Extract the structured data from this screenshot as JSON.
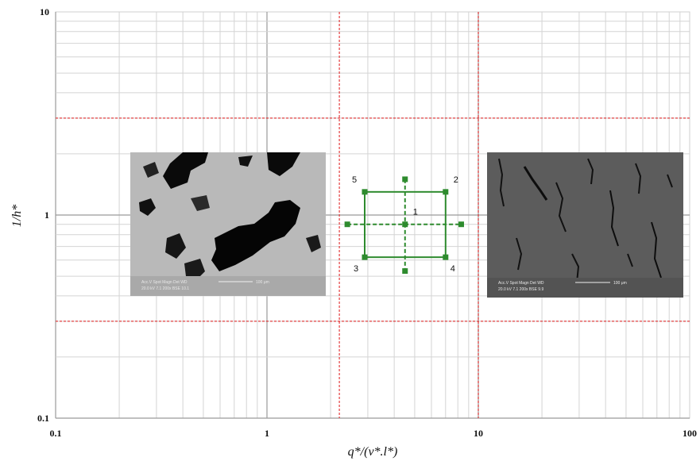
{
  "chart_data": {
    "type": "scatter",
    "x_scale": "log",
    "y_scale": "log",
    "xlim": [
      0.1,
      100
    ],
    "ylim": [
      0.1,
      10
    ],
    "x_ticks": [
      "0.1",
      "1",
      "10",
      "100"
    ],
    "y_ticks": [
      "0.1",
      "1",
      "10"
    ],
    "xlabel": "q*/(v*.l*)",
    "ylabel": "1/h*",
    "grid": true,
    "reference_lines": {
      "vertical": [
        2.2,
        10
      ],
      "horizontal": [
        3.0,
        0.3
      ],
      "color": "#e0191a"
    },
    "design_points": [
      {
        "label": "1",
        "x": 4.5,
        "y": 0.9
      },
      {
        "label": "2",
        "x": 7.0,
        "y": 1.3
      },
      {
        "label": "3",
        "x": 2.9,
        "y": 0.62
      },
      {
        "label": "4",
        "x": 7.0,
        "y": 0.62
      },
      {
        "label": "5",
        "x": 2.9,
        "y": 1.3
      }
    ],
    "axial_points": [
      {
        "x": 4.5,
        "y": 1.5
      },
      {
        "x": 4.5,
        "y": 0.53
      },
      {
        "x": 2.4,
        "y": 0.9
      },
      {
        "x": 8.3,
        "y": 0.9
      }
    ],
    "point_color": "#2e8b2e",
    "micrograph_left": {
      "line1": "Acc.V  Spot Magn   Det  WD",
      "line2": "20.0 kV 7.1  200x   BSE 10.1",
      "scale": "100 μm"
    },
    "micrograph_right": {
      "line1": "Acc.V  Spot Magn   Det  WD",
      "line2": "20.0 kV 7.1  200x   BSE 9.9",
      "scale": "100 μm"
    }
  }
}
